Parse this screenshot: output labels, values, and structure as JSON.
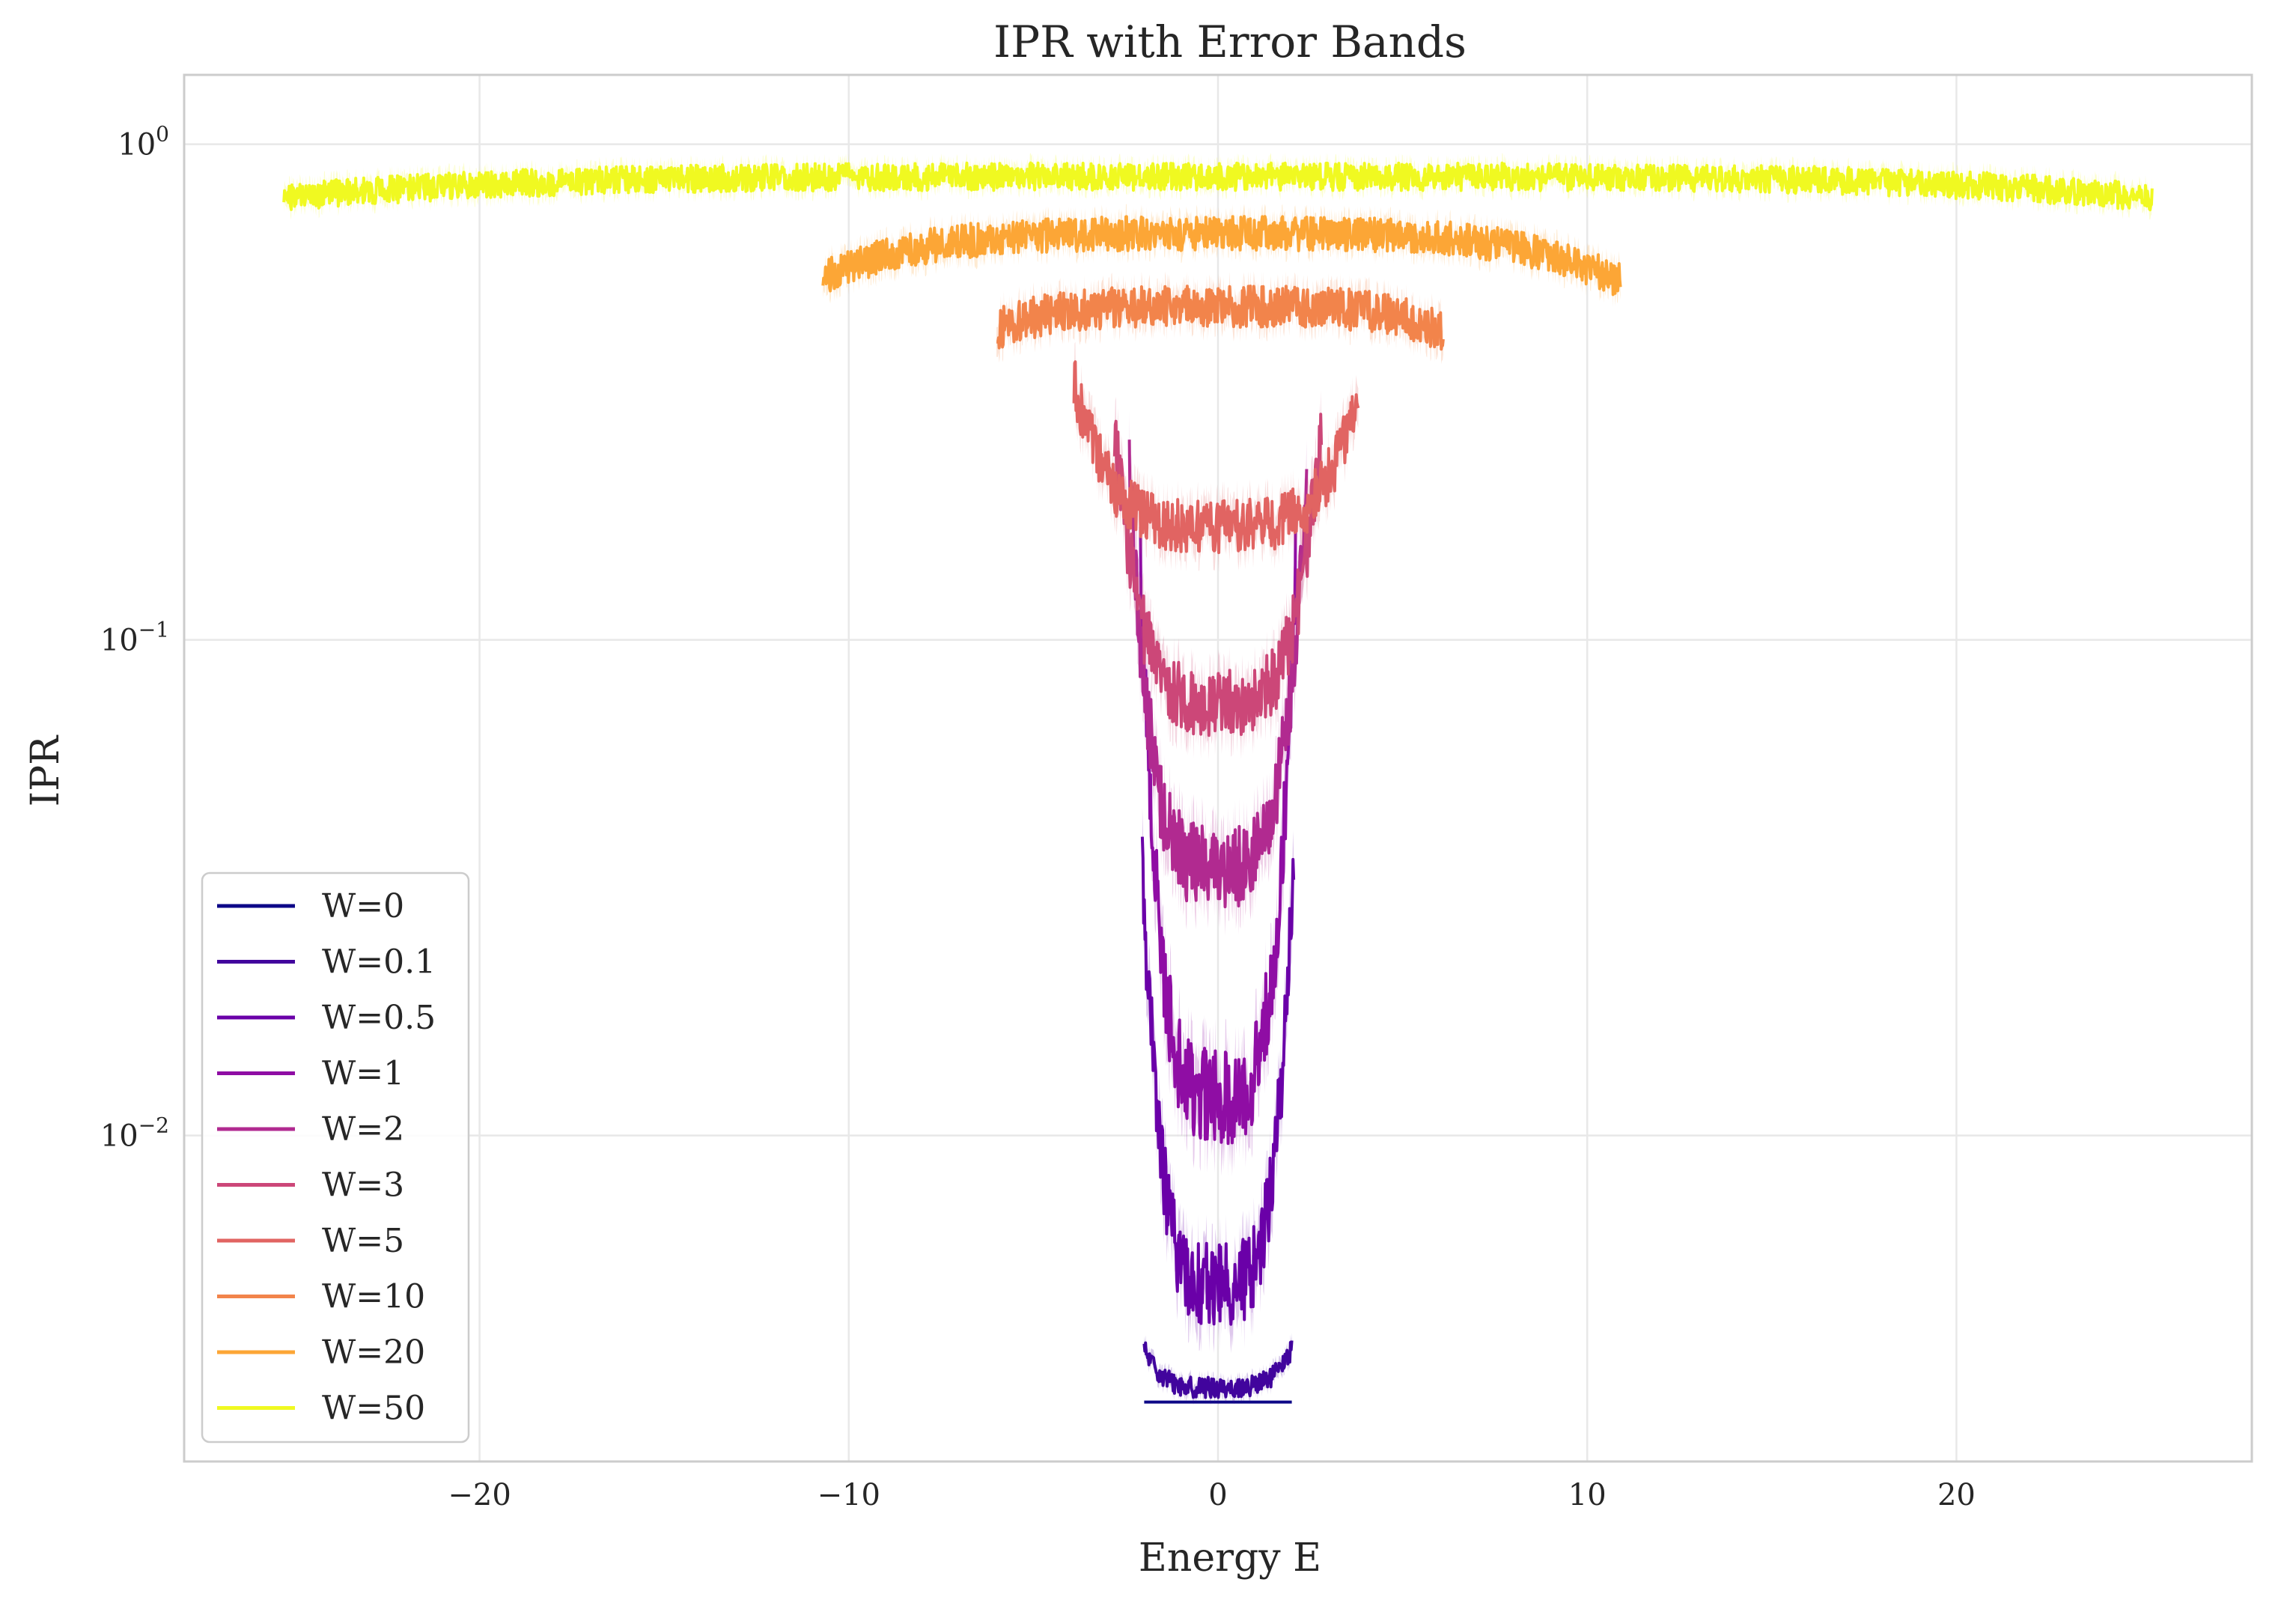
{
  "chart_data": {
    "type": "line",
    "title": "IPR with Error Bands",
    "xlabel": "Energy E",
    "ylabel": "IPR",
    "xlim": [
      -28,
      28
    ],
    "ylim": [
      0.0022,
      1.38
    ],
    "yscale": "log",
    "x_ticks": [
      -20,
      -10,
      0,
      10,
      20
    ],
    "x_tick_labels": [
      "−20",
      "−10",
      "0",
      "10",
      "20"
    ],
    "y_ticks": [
      1,
      0.1,
      0.01
    ],
    "y_tick_labels": [
      {
        "base": "10",
        "exp": "0"
      },
      {
        "base": "10",
        "exp": "−1"
      },
      {
        "base": "10",
        "exp": "−2"
      }
    ],
    "grid": true,
    "legend_position": "lower-left",
    "error_bands": true,
    "series": [
      {
        "name": "W=0",
        "color": "#0d0887",
        "emin": -2.0,
        "emax": 2.0,
        "edge": 0.0029,
        "center": 0.0029,
        "noise": 0.0
      },
      {
        "name": "W=0.1",
        "color": "#41049d",
        "emin": -2.0,
        "emax": 2.0,
        "edge": 0.0037,
        "center": 0.0031,
        "noise": 0.03
      },
      {
        "name": "W=0.5",
        "color": "#6a00a8",
        "emin": -2.05,
        "emax": 2.05,
        "edge": 0.035,
        "center": 0.005,
        "noise": 0.12
      },
      {
        "name": "W=1",
        "color": "#8f0da4",
        "emin": -2.1,
        "emax": 2.1,
        "edge": 0.14,
        "center": 0.012,
        "noise": 0.14
      },
      {
        "name": "W=2",
        "color": "#b12a90",
        "emin": -2.4,
        "emax": 2.4,
        "edge": 0.21,
        "center": 0.035,
        "noise": 0.12
      },
      {
        "name": "W=3",
        "color": "#cc4778",
        "emin": -2.8,
        "emax": 2.8,
        "edge": 0.27,
        "center": 0.075,
        "noise": 0.1
      },
      {
        "name": "W=5",
        "color": "#e16462",
        "emin": -3.9,
        "emax": 3.8,
        "edge": 0.33,
        "center": 0.17,
        "noise": 0.08
      },
      {
        "name": "W=10",
        "color": "#f2844b",
        "emin": -6.0,
        "emax": 6.1,
        "edge": 0.42,
        "center": 0.47,
        "noise": 0.06
      },
      {
        "name": "W=20",
        "color": "#fca636",
        "emin": -10.7,
        "emax": 10.9,
        "edge": 0.53,
        "center": 0.66,
        "noise": 0.05
      },
      {
        "name": "W=50",
        "color": "#f0f921",
        "emin": -25.3,
        "emax": 25.3,
        "edge": 0.78,
        "center": 0.86,
        "noise": 0.04
      }
    ]
  }
}
